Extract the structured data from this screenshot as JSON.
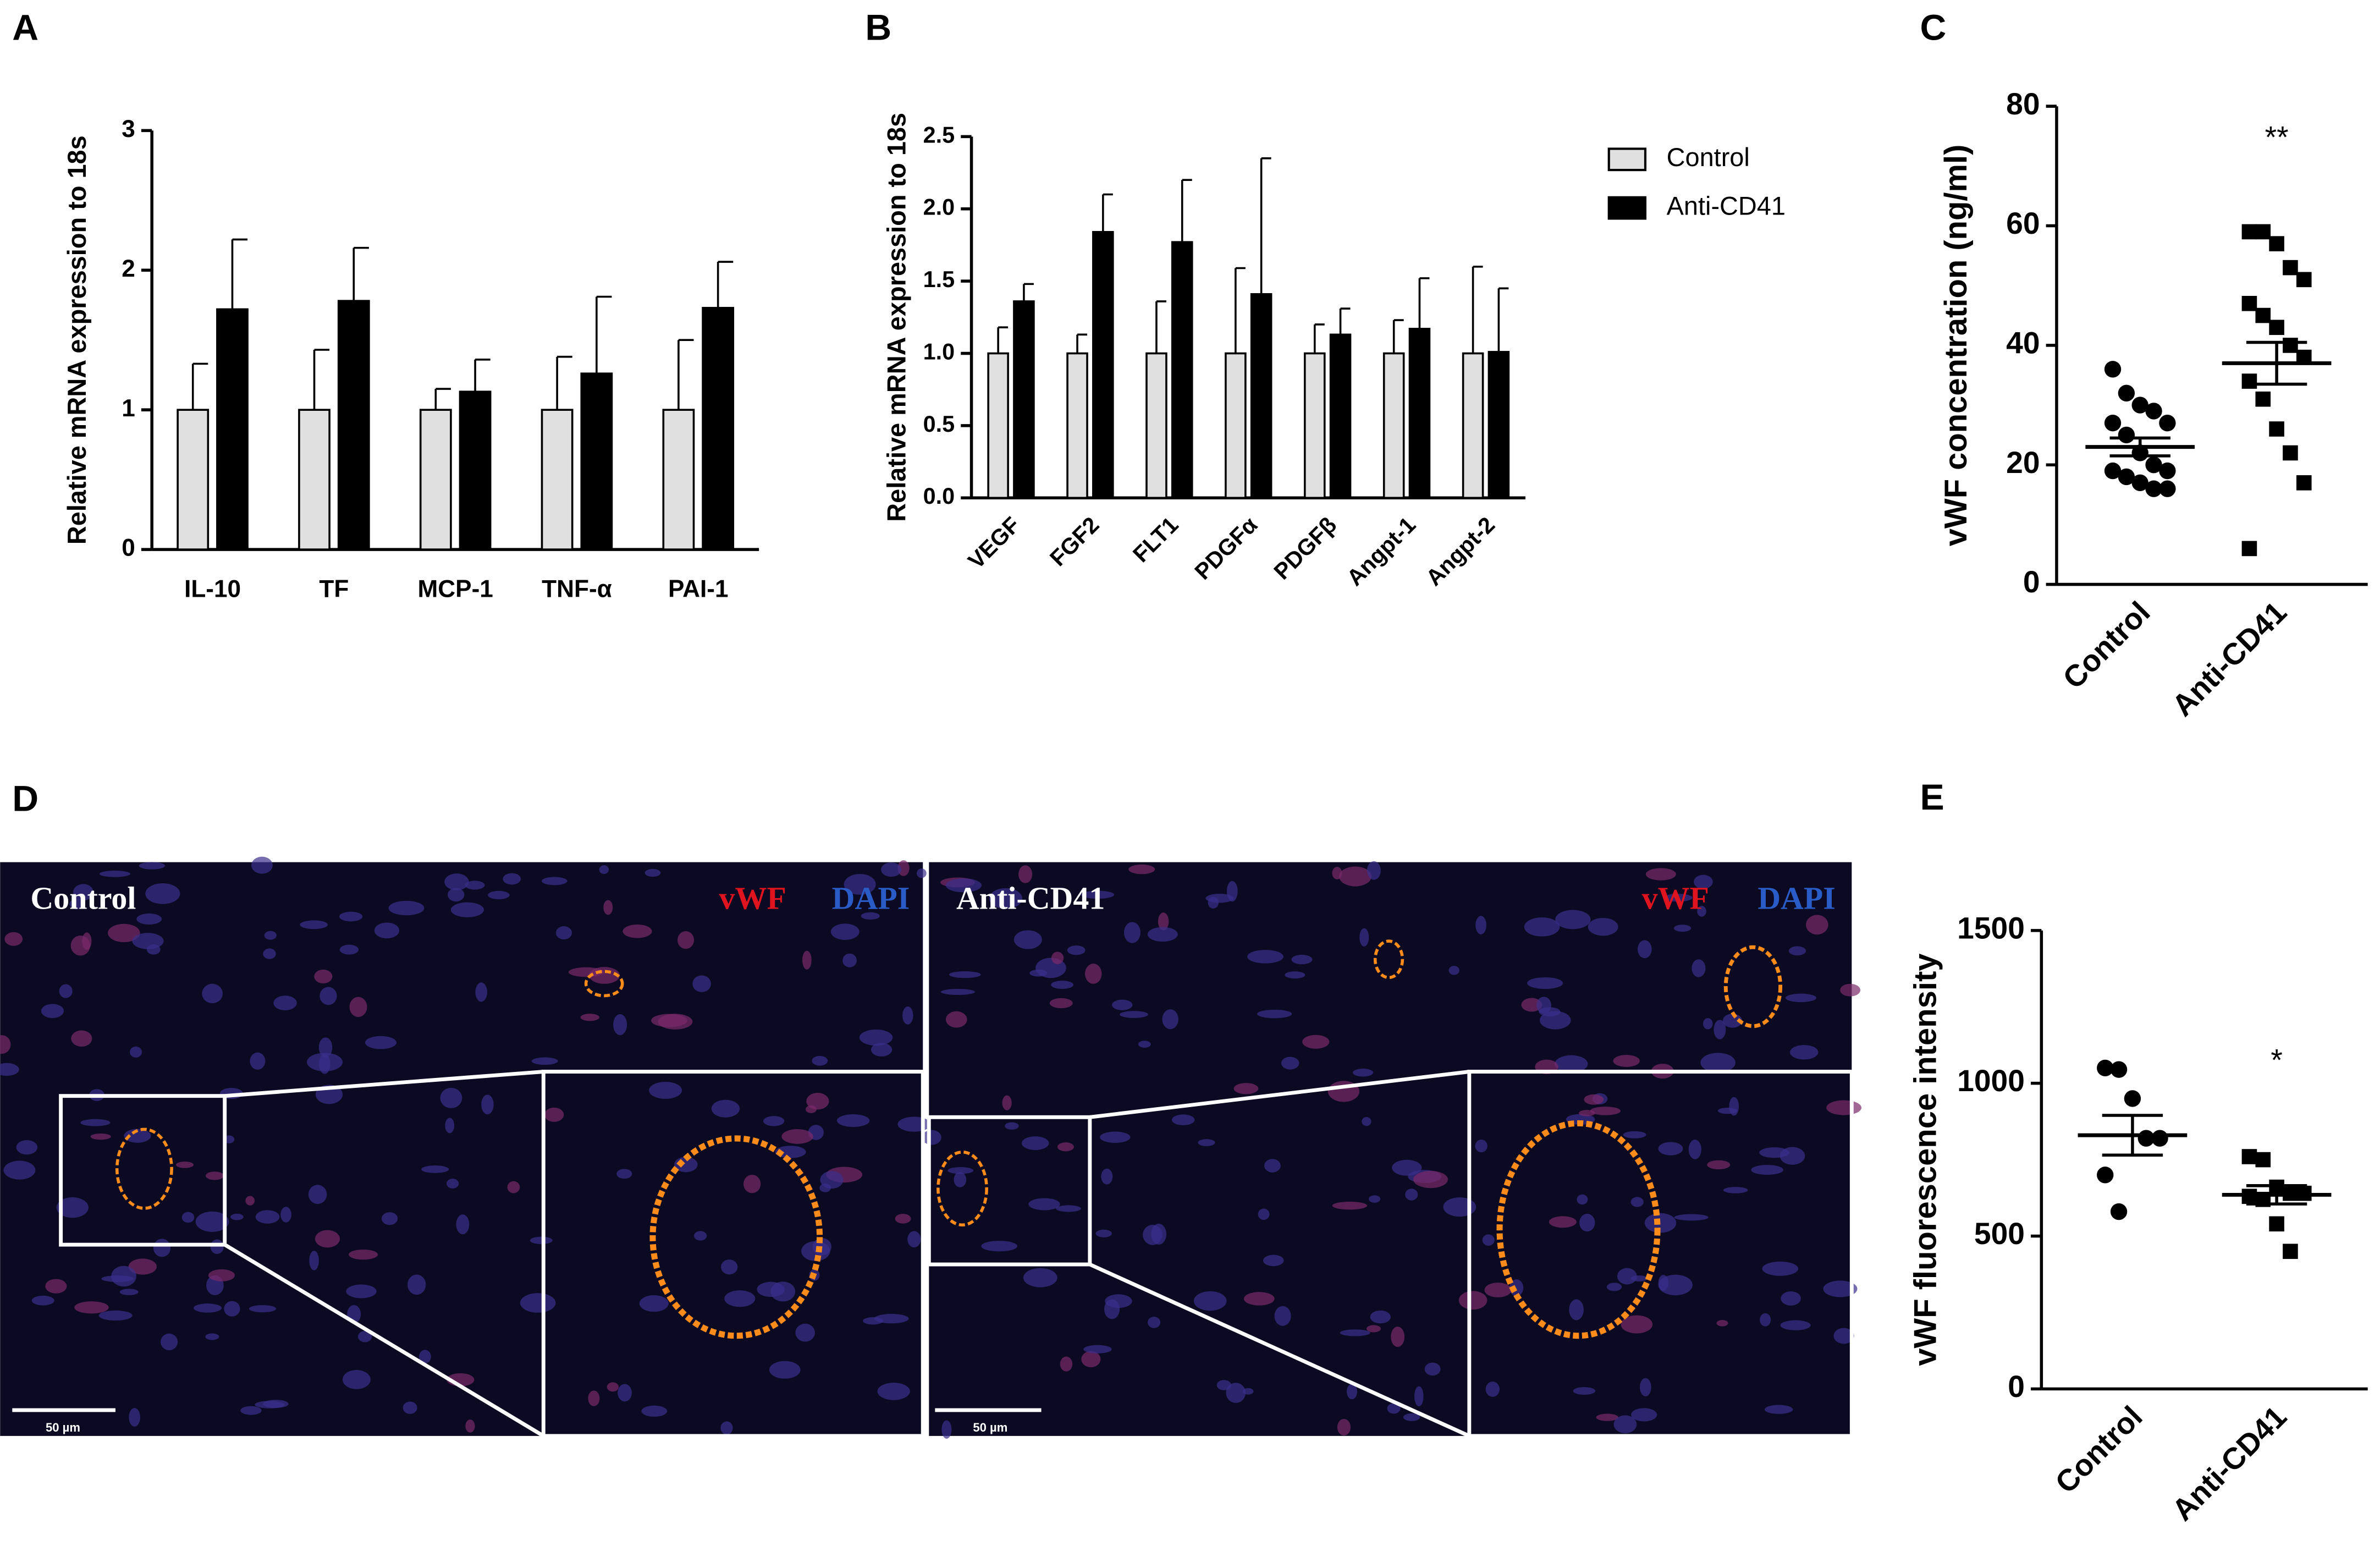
{
  "chart_data": [
    {
      "type": "bar",
      "panel_label": "A",
      "y_label": "Relative mRNA expression to 18s",
      "categories": [
        "IL-10",
        "TF",
        "MCP-1",
        "TNF-α",
        "PAI-1"
      ],
      "series": [
        {
          "name": "Control",
          "color": "#e0e0e0",
          "values": [
            1,
            1,
            1,
            1,
            1
          ],
          "errors": [
            0.33,
            0.43,
            0.15,
            0.38,
            0.5
          ]
        },
        {
          "name": "Anti-CD41",
          "color": "#000000",
          "values": [
            1.72,
            1.78,
            1.13,
            1.26,
            1.73
          ],
          "errors": [
            0.5,
            0.38,
            0.23,
            0.55,
            0.33
          ]
        }
      ],
      "ylim": [
        0,
        3
      ],
      "yticks": [
        0,
        1,
        2,
        3
      ]
    },
    {
      "type": "bar",
      "panel_label": "B",
      "y_label": "Relative mRNA expression to 18s",
      "categories": [
        "VEGF",
        "FGF2",
        "FLT1",
        "PDGFα",
        "PDGFβ",
        "Angpt-1",
        "Angpt-2"
      ],
      "series": [
        {
          "name": "Control",
          "color": "#e0e0e0",
          "values": [
            1,
            1,
            1,
            1,
            1,
            1,
            1
          ],
          "errors": [
            0.18,
            0.13,
            0.36,
            0.59,
            0.2,
            0.23,
            0.6
          ]
        },
        {
          "name": "Anti-CD41",
          "color": "#000000",
          "values": [
            1.36,
            1.84,
            1.77,
            1.41,
            1.13,
            1.17,
            1.01
          ],
          "errors": [
            0.12,
            0.26,
            0.43,
            0.94,
            0.18,
            0.35,
            0.44
          ]
        }
      ],
      "ylim": [
        0,
        2.5
      ],
      "yticks": [
        {
          "value": 0,
          "label": "0.0"
        },
        0.5,
        {
          "value": 1,
          "label": "1.0"
        },
        1.5,
        {
          "value": 2,
          "label": "2.0"
        },
        2.5
      ],
      "legend": true
    },
    {
      "type": "strip",
      "panel_label": "C",
      "y_label": "vWF concentration (ng/ml)",
      "annotation": "**",
      "groups": [
        {
          "label": "Control",
          "marker": "circle",
          "values": [
            36,
            32,
            30,
            29,
            27,
            27,
            25,
            22,
            20,
            19,
            19,
            18,
            17,
            16,
            16
          ],
          "mean": 23,
          "sem": 1.5
        },
        {
          "label": "Anti-CD41",
          "marker": "square",
          "values": [
            59,
            59,
            57,
            53,
            51,
            47,
            45,
            43,
            40,
            38,
            34,
            31,
            26,
            22,
            17,
            6
          ],
          "mean": 37,
          "sem": 3.5
        }
      ],
      "ylim": [
        0,
        80
      ],
      "yticks": [
        0,
        20,
        40,
        60,
        80
      ]
    },
    {
      "type": "strip",
      "panel_label": "E",
      "y_label": "vWF fluorescence intensity",
      "annotation": "*",
      "groups": [
        {
          "label": "Control",
          "marker": "circle",
          "values": [
            1050,
            1045,
            950,
            820,
            820,
            700,
            580
          ],
          "mean": 830,
          "sem": 65
        },
        {
          "label": "Anti-CD41",
          "marker": "square",
          "values": [
            760,
            750,
            660,
            640,
            640,
            630,
            620,
            540,
            450
          ],
          "mean": 635,
          "sem": 30
        }
      ],
      "ylim": [
        0,
        1500
      ],
      "yticks": [
        0,
        500,
        1000,
        1500
      ]
    }
  ],
  "image_panel": {
    "panel_label": "D",
    "left": {
      "title": "Control",
      "stain1": "vWF",
      "stain2": "DAPI",
      "scale": "50 µm"
    },
    "right": {
      "title": "Anti-CD41",
      "stain1": "vWF",
      "stain2": "DAPI",
      "scale": "50 µm"
    }
  }
}
